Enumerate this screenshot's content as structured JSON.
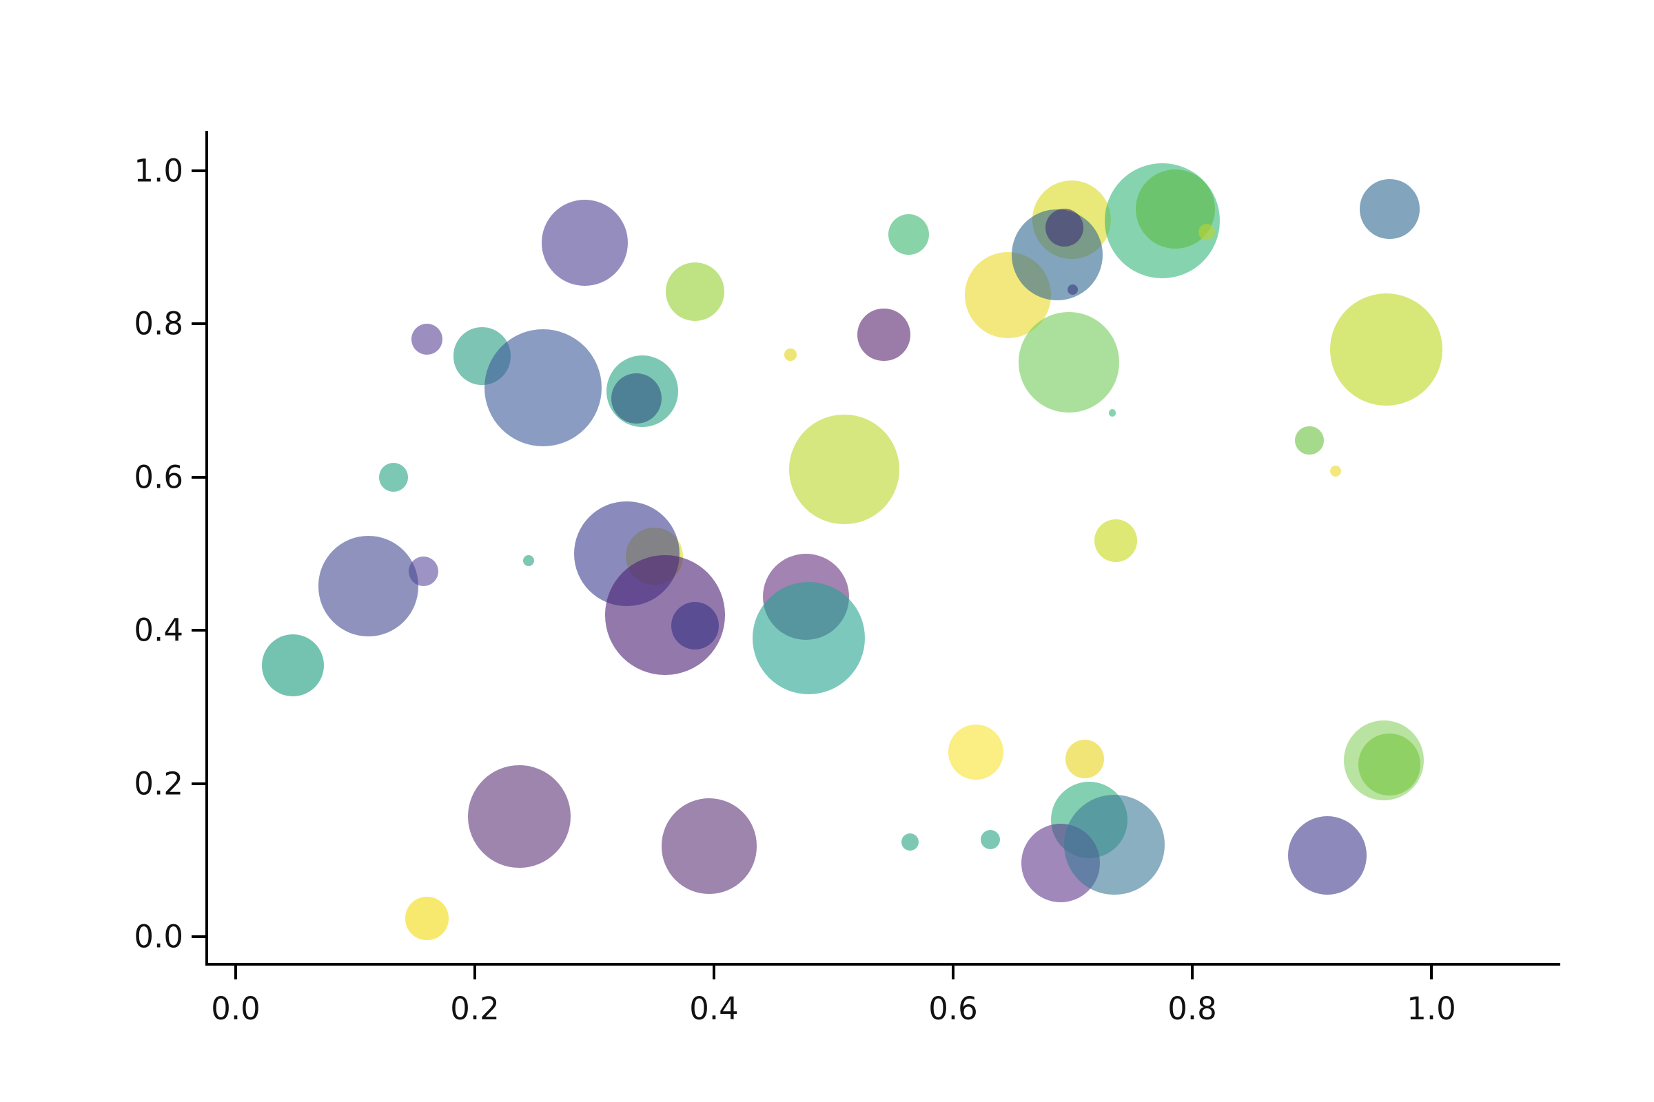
{
  "chart_data": {
    "type": "scatter",
    "subtype": "bubble",
    "title": "",
    "xlabel": "",
    "ylabel": "",
    "grid": false,
    "legend": false,
    "background_color": "#ffffff",
    "axis_color": "#000000",
    "tick_label_color": "#111111",
    "xlim": [
      -0.025,
      1.108
    ],
    "ylim": [
      -0.036,
      1.052
    ],
    "x_tick_values": [
      0.0,
      0.2,
      0.4,
      0.6,
      0.8,
      1.0
    ],
    "x_tick_labels": [
      "0.0",
      "0.2",
      "0.4",
      "0.6",
      "0.8",
      "1.0"
    ],
    "y_tick_values": [
      0.0,
      0.2,
      0.4,
      0.6,
      0.8,
      1.0
    ],
    "y_tick_labels": [
      "0.0",
      "0.2",
      "0.4",
      "0.6",
      "0.8",
      "1.0"
    ],
    "marker_alpha": 0.6,
    "colormap": "viridis",
    "points": [
      {
        "x": 0.35,
        "y": 0.497,
        "r": 0.024,
        "color": "#d9e024"
      },
      {
        "x": 0.327,
        "y": 0.5,
        "r": 0.044,
        "color": "#3e3c8f"
      },
      {
        "x": 0.292,
        "y": 0.906,
        "r": 0.036,
        "color": "#4f4193"
      },
      {
        "x": 0.384,
        "y": 0.842,
        "r": 0.0245,
        "color": "#94cf30"
      },
      {
        "x": 0.16,
        "y": 0.78,
        "r": 0.013,
        "color": "#5a4393"
      },
      {
        "x": 0.206,
        "y": 0.758,
        "r": 0.024,
        "color": "#269d82"
      },
      {
        "x": 0.257,
        "y": 0.717,
        "r": 0.049,
        "color": "#3e5a9b"
      },
      {
        "x": 0.34,
        "y": 0.712,
        "r": 0.03,
        "color": "#26a482"
      },
      {
        "x": 0.335,
        "y": 0.703,
        "r": 0.021,
        "color": "#305182"
      },
      {
        "x": 0.464,
        "y": 0.76,
        "r": 0.005,
        "color": "#e3d41c"
      },
      {
        "x": 0.542,
        "y": 0.786,
        "r": 0.022,
        "color": "#58256e"
      },
      {
        "x": 0.563,
        "y": 0.917,
        "r": 0.017,
        "color": "#3ab56f"
      },
      {
        "x": 0.699,
        "y": 0.936,
        "r": 0.033,
        "color": "#dada21"
      },
      {
        "x": 0.646,
        "y": 0.838,
        "r": 0.036,
        "color": "#ebd926"
      },
      {
        "x": 0.687,
        "y": 0.89,
        "r": 0.038,
        "color": "#2f678f"
      },
      {
        "x": 0.693,
        "y": 0.926,
        "r": 0.016,
        "color": "#3f2f76"
      },
      {
        "x": 0.7,
        "y": 0.845,
        "r": 0.0045,
        "color": "#3a3a80"
      },
      {
        "x": 0.775,
        "y": 0.935,
        "r": 0.048,
        "color": "#35b779"
      },
      {
        "x": 0.786,
        "y": 0.95,
        "r": 0.033,
        "color": "#5bbb43"
      },
      {
        "x": 0.812,
        "y": 0.92,
        "r": 0.007,
        "color": "#bcd32f"
      },
      {
        "x": 0.697,
        "y": 0.75,
        "r": 0.042,
        "color": "#73cb5a"
      },
      {
        "x": 0.733,
        "y": 0.684,
        "r": 0.003,
        "color": "#35b779"
      },
      {
        "x": 0.965,
        "y": 0.95,
        "r": 0.025,
        "color": "#2f678f"
      },
      {
        "x": 0.962,
        "y": 0.767,
        "r": 0.047,
        "color": "#bcd91e"
      },
      {
        "x": 0.898,
        "y": 0.648,
        "r": 0.012,
        "color": "#69c03f"
      },
      {
        "x": 0.92,
        "y": 0.608,
        "r": 0.0046,
        "color": "#edd826"
      },
      {
        "x": 0.736,
        "y": 0.517,
        "r": 0.018,
        "color": "#c8d917"
      },
      {
        "x": 0.509,
        "y": 0.61,
        "r": 0.046,
        "color": "#b9d728"
      },
      {
        "x": 0.132,
        "y": 0.6,
        "r": 0.012,
        "color": "#26a482"
      },
      {
        "x": 0.157,
        "y": 0.477,
        "r": 0.0125,
        "color": "#5d4d9d"
      },
      {
        "x": 0.111,
        "y": 0.458,
        "r": 0.042,
        "color": "#434991"
      },
      {
        "x": 0.048,
        "y": 0.354,
        "r": 0.026,
        "color": "#17997b"
      },
      {
        "x": 0.245,
        "y": 0.491,
        "r": 0.0046,
        "color": "#26a482"
      },
      {
        "x": 0.359,
        "y": 0.42,
        "r": 0.05,
        "color": "#4b2073"
      },
      {
        "x": 0.384,
        "y": 0.406,
        "r": 0.02,
        "color": "#363085"
      },
      {
        "x": 0.477,
        "y": 0.444,
        "r": 0.036,
        "color": "#64307f"
      },
      {
        "x": 0.479,
        "y": 0.39,
        "r": 0.047,
        "color": "#25a391"
      },
      {
        "x": 0.619,
        "y": 0.241,
        "r": 0.023,
        "color": "#f8e22e"
      },
      {
        "x": 0.71,
        "y": 0.232,
        "r": 0.016,
        "color": "#e8d41c"
      },
      {
        "x": 0.237,
        "y": 0.157,
        "r": 0.043,
        "color": "#5c3478"
      },
      {
        "x": 0.396,
        "y": 0.118,
        "r": 0.04,
        "color": "#5c3478"
      },
      {
        "x": 0.16,
        "y": 0.024,
        "r": 0.018,
        "color": "#f2da0c"
      },
      {
        "x": 0.564,
        "y": 0.124,
        "r": 0.0072,
        "color": "#26a482"
      },
      {
        "x": 0.631,
        "y": 0.127,
        "r": 0.0081,
        "color": "#26a482"
      },
      {
        "x": 0.714,
        "y": 0.152,
        "r": 0.032,
        "color": "#2faf7d"
      },
      {
        "x": 0.69,
        "y": 0.096,
        "r": 0.033,
        "color": "#61398e"
      },
      {
        "x": 0.735,
        "y": 0.12,
        "r": 0.042,
        "color": "#3c7a96"
      },
      {
        "x": 0.96,
        "y": 0.23,
        "r": 0.0334,
        "color": "#89d061"
      },
      {
        "x": 0.965,
        "y": 0.225,
        "r": 0.026,
        "color": "#74c43e"
      },
      {
        "x": 0.913,
        "y": 0.106,
        "r": 0.033,
        "color": "#413b8c"
      }
    ]
  }
}
